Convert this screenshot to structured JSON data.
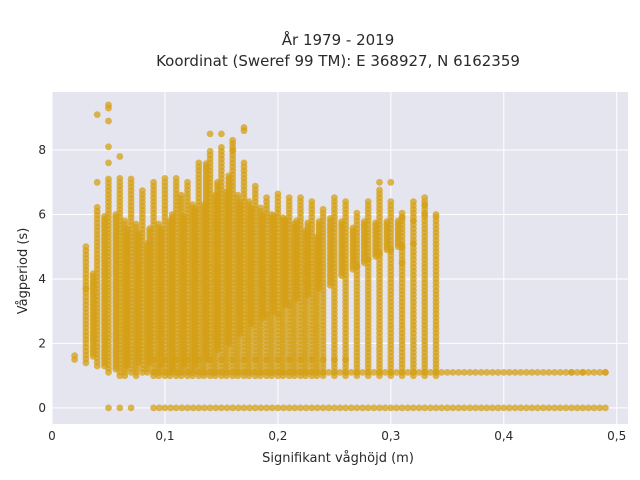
{
  "chart_data": {
    "type": "scatter",
    "title_line1": "År 1979 - 2019",
    "title_line2": "Koordinat (Sweref 99 TM): E 368927, N 6162359",
    "xlabel": "Signifikant våghöjd (m)",
    "ylabel": "Vågperiod (s)",
    "xlim": [
      0,
      0.51
    ],
    "ylim": [
      -0.5,
      9.8
    ],
    "x_ticks": [
      0,
      0.1,
      0.2,
      0.3,
      0.4,
      0.5
    ],
    "x_tick_labels": [
      "0",
      "0,1",
      "0,2",
      "0,3",
      "0,4",
      "0,5"
    ],
    "y_ticks": [
      0,
      2,
      4,
      6,
      8
    ],
    "y_tick_labels": [
      "0",
      "2",
      "4",
      "6",
      "8"
    ],
    "grid": true,
    "background_color": "#e5e5ef",
    "marker_color": "#d4a017",
    "columns": [
      {
        "x": 0.02,
        "ymin": 1.5,
        "ymax": 1.7
      },
      {
        "x": 0.03,
        "ymin": 1.4,
        "ymax": 5.1
      },
      {
        "x": 0.04,
        "ymin": 1.3,
        "ymax": 6.3
      },
      {
        "x": 0.05,
        "ymin": 1.1,
        "ymax": 7.1
      },
      {
        "x": 0.06,
        "ymin": 1.0,
        "ymax": 7.2
      },
      {
        "x": 0.07,
        "ymin": 1.1,
        "ymax": 7.1
      },
      {
        "x": 0.08,
        "ymin": 1.1,
        "ymax": 6.8
      },
      {
        "x": 0.09,
        "ymin": 1.0,
        "ymax": 7.1
      },
      {
        "x": 0.1,
        "ymin": 1.0,
        "ymax": 7.2
      },
      {
        "x": 0.11,
        "ymin": 1.0,
        "ymax": 7.2
      },
      {
        "x": 0.12,
        "ymin": 1.0,
        "ymax": 7.1
      },
      {
        "x": 0.13,
        "ymin": 1.0,
        "ymax": 7.6
      },
      {
        "x": 0.14,
        "ymin": 1.0,
        "ymax": 8.0
      },
      {
        "x": 0.15,
        "ymin": 1.0,
        "ymax": 8.1
      },
      {
        "x": 0.16,
        "ymin": 1.0,
        "ymax": 8.3
      },
      {
        "x": 0.17,
        "ymin": 1.0,
        "ymax": 7.6
      },
      {
        "x": 0.18,
        "ymin": 1.0,
        "ymax": 6.9
      },
      {
        "x": 0.19,
        "ymin": 1.0,
        "ymax": 6.6
      },
      {
        "x": 0.2,
        "ymin": 1.0,
        "ymax": 6.7
      },
      {
        "x": 0.21,
        "ymin": 1.0,
        "ymax": 6.6
      },
      {
        "x": 0.22,
        "ymin": 1.0,
        "ymax": 6.6
      },
      {
        "x": 0.23,
        "ymin": 1.0,
        "ymax": 6.4
      },
      {
        "x": 0.24,
        "ymin": 1.0,
        "ymax": 6.2
      },
      {
        "x": 0.25,
        "ymin": 1.0,
        "ymax": 6.6
      },
      {
        "x": 0.26,
        "ymin": 1.0,
        "ymax": 6.4
      },
      {
        "x": 0.27,
        "ymin": 1.0,
        "ymax": 6.1
      },
      {
        "x": 0.28,
        "ymin": 1.0,
        "ymax": 6.4
      },
      {
        "x": 0.29,
        "ymin": 1.0,
        "ymax": 6.8
      },
      {
        "x": 0.3,
        "ymin": 1.0,
        "ymax": 6.5
      },
      {
        "x": 0.31,
        "ymin": 1.0,
        "ymax": 6.1
      },
      {
        "x": 0.32,
        "ymin": 1.0,
        "ymax": 6.4
      },
      {
        "x": 0.33,
        "ymin": 1.0,
        "ymax": 6.6
      },
      {
        "x": 0.34,
        "ymin": 1.0,
        "ymax": 6.0
      }
    ],
    "columns_extended": [
      {
        "x": 0.06,
        "ymin": 1.0,
        "ymax": 5.8
      },
      {
        "x": 0.07,
        "ymin": 1.0,
        "ymax": 5.7
      },
      {
        "x": 0.08,
        "ymin": 1.1,
        "ymax": 5.1
      },
      {
        "x": 0.09,
        "ymin": 1.0,
        "ymax": 5.7
      },
      {
        "x": 0.1,
        "ymin": 1.0,
        "ymax": 5.8
      },
      {
        "x": 0.11,
        "ymin": 1.0,
        "ymax": 6.6
      },
      {
        "x": 0.12,
        "ymin": 1.0,
        "ymax": 6.3
      },
      {
        "x": 0.13,
        "ymin": 1.0,
        "ymax": 6.3
      },
      {
        "x": 0.14,
        "ymin": 1.0,
        "ymax": 6.6
      },
      {
        "x": 0.15,
        "ymin": 1.0,
        "ymax": 6.7
      },
      {
        "x": 0.16,
        "ymin": 1.0,
        "ymax": 6.6
      },
      {
        "x": 0.17,
        "ymin": 1.0,
        "ymax": 6.4
      },
      {
        "x": 0.18,
        "ymin": 1.0,
        "ymax": 6.2
      },
      {
        "x": 0.19,
        "ymin": 1.0,
        "ymax": 6.0
      },
      {
        "x": 0.2,
        "ymin": 1.0,
        "ymax": 5.9
      },
      {
        "x": 0.21,
        "ymin": 1.0,
        "ymax": 5.7
      },
      {
        "x": 0.22,
        "ymin": 1.0,
        "ymax": 5.5
      },
      {
        "x": 0.23,
        "ymin": 1.0,
        "ymax": 5.3
      }
    ],
    "core_bands": [
      {
        "x": 0.04,
        "ymin": 1.6,
        "ymax": 4.2
      },
      {
        "x": 0.05,
        "ymin": 1.3,
        "ymax": 6.0
      },
      {
        "x": 0.06,
        "ymin": 1.2,
        "ymax": 6.0
      },
      {
        "x": 0.07,
        "ymin": 1.3,
        "ymax": 5.6
      },
      {
        "x": 0.08,
        "ymin": 1.4,
        "ymax": 5.4
      },
      {
        "x": 0.09,
        "ymin": 1.4,
        "ymax": 5.6
      },
      {
        "x": 0.1,
        "ymin": 1.3,
        "ymax": 5.6
      },
      {
        "x": 0.11,
        "ymin": 1.2,
        "ymax": 6.0
      },
      {
        "x": 0.12,
        "ymin": 1.3,
        "ymax": 6.0
      },
      {
        "x": 0.13,
        "ymin": 1.3,
        "ymax": 6.2
      },
      {
        "x": 0.14,
        "ymin": 1.5,
        "ymax": 7.6
      },
      {
        "x": 0.15,
        "ymin": 1.8,
        "ymax": 7.0
      },
      {
        "x": 0.16,
        "ymin": 2.0,
        "ymax": 7.2
      },
      {
        "x": 0.17,
        "ymin": 2.3,
        "ymax": 6.4
      },
      {
        "x": 0.18,
        "ymin": 2.6,
        "ymax": 6.2
      },
      {
        "x": 0.19,
        "ymin": 2.8,
        "ymax": 6.0
      },
      {
        "x": 0.2,
        "ymin": 3.0,
        "ymax": 6.0
      },
      {
        "x": 0.21,
        "ymin": 3.2,
        "ymax": 5.9
      },
      {
        "x": 0.22,
        "ymin": 3.4,
        "ymax": 5.8
      },
      {
        "x": 0.23,
        "ymin": 3.5,
        "ymax": 5.8
      },
      {
        "x": 0.24,
        "ymin": 3.7,
        "ymax": 5.8
      },
      {
        "x": 0.25,
        "ymin": 3.8,
        "ymax": 5.9
      },
      {
        "x": 0.26,
        "ymin": 4.1,
        "ymax": 5.8
      },
      {
        "x": 0.27,
        "ymin": 4.3,
        "ymax": 5.6
      },
      {
        "x": 0.28,
        "ymin": 4.5,
        "ymax": 5.8
      },
      {
        "x": 0.29,
        "ymin": 4.7,
        "ymax": 5.8
      },
      {
        "x": 0.3,
        "ymin": 4.9,
        "ymax": 5.8
      },
      {
        "x": 0.31,
        "ymin": 5.0,
        "ymax": 5.8
      }
    ],
    "band_15": {
      "xmin": 0.09,
      "xmax": 0.26,
      "y": 1.5
    },
    "band_11": {
      "xmin": 0.09,
      "xmax": 0.49,
      "y": 1.1
    },
    "band_0": {
      "xmin": 0.09,
      "xmax": 0.49,
      "y": 0.0
    },
    "extra_points": [
      [
        0.05,
        0.0
      ],
      [
        0.06,
        0.0
      ],
      [
        0.07,
        0.0
      ],
      [
        0.04,
        9.1
      ],
      [
        0.05,
        9.4
      ],
      [
        0.05,
        9.3
      ],
      [
        0.05,
        8.9
      ],
      [
        0.05,
        8.1
      ],
      [
        0.05,
        7.6
      ],
      [
        0.06,
        7.8
      ],
      [
        0.04,
        7.0
      ],
      [
        0.03,
        3.7
      ],
      [
        0.14,
        8.5
      ],
      [
        0.15,
        8.5
      ],
      [
        0.16,
        8.3
      ],
      [
        0.17,
        8.6
      ],
      [
        0.17,
        8.7
      ],
      [
        0.16,
        8.0
      ],
      [
        0.29,
        7.0
      ],
      [
        0.3,
        7.0
      ],
      [
        0.31,
        5.9
      ],
      [
        0.32,
        5.8
      ],
      [
        0.32,
        5.1
      ],
      [
        0.33,
        6.0
      ],
      [
        0.33,
        6.3
      ],
      [
        0.34,
        6.0
      ],
      [
        0.31,
        5.0
      ],
      [
        0.31,
        4.5
      ],
      [
        0.28,
        4.6
      ],
      [
        0.27,
        4.4
      ],
      [
        0.29,
        4.8
      ],
      [
        0.3,
        4.9
      ],
      [
        0.2,
        2.9
      ],
      [
        0.19,
        2.9
      ],
      [
        0.21,
        3.2
      ],
      [
        0.47,
        1.1
      ],
      [
        0.49,
        1.1
      ],
      [
        0.46,
        1.1
      ]
    ]
  }
}
